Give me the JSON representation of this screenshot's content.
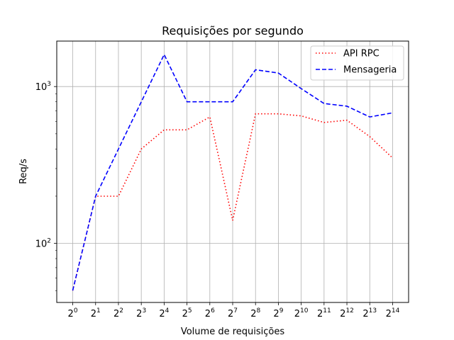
{
  "chart_data": {
    "type": "line",
    "title": "Requisições por segundo",
    "xlabel": "Volume de requisições",
    "ylabel": "Req/s",
    "y_scale": "log",
    "ylim": [
      42,
      1950
    ],
    "x_tick_base": "2",
    "x_tick_exponents": [
      "0",
      "1",
      "2",
      "3",
      "4",
      "5",
      "6",
      "7",
      "8",
      "9",
      "10",
      "11",
      "12",
      "13",
      "14"
    ],
    "y_tick_base": "10",
    "y_tick_exponents": [
      "2",
      "3"
    ],
    "grid": true,
    "legend_position": "top-right",
    "x": [
      1,
      2,
      4,
      8,
      16,
      32,
      64,
      128,
      256,
      512,
      1024,
      2048,
      4096,
      8192,
      16384
    ],
    "series": [
      {
        "name": "API RPC",
        "color": "#ff0000",
        "style": "dotted",
        "values": [
          50,
          200,
          200,
          400,
          530,
          530,
          640,
          140,
          670,
          670,
          650,
          590,
          610,
          480,
          350
        ]
      },
      {
        "name": "Mensageria",
        "color": "#0000ff",
        "style": "dashed",
        "values": [
          50,
          200,
          400,
          800,
          1600,
          800,
          800,
          800,
          1280,
          1220,
          970,
          780,
          750,
          640,
          680
        ]
      }
    ]
  }
}
